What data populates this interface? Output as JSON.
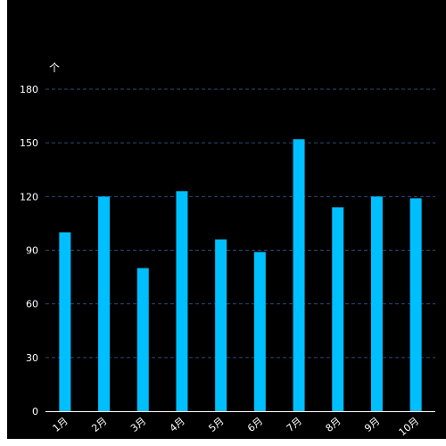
{
  "chart_data": {
    "type": "bar",
    "unit": "个",
    "categories": [
      "1月",
      "2月",
      "3月",
      "4月",
      "5月",
      "6月",
      "7月",
      "8月",
      "9月",
      "10月"
    ],
    "values": [
      100,
      120,
      80,
      123,
      96,
      89,
      152,
      114,
      120,
      119
    ],
    "y_ticks": [
      0,
      30,
      60,
      90,
      120,
      150,
      180
    ],
    "ylim": [
      0,
      180
    ],
    "grid": true,
    "colors": {
      "bar": "#00bfff",
      "background": "#000000",
      "gridline": "#2b4a78",
      "axis": "#ffffff",
      "text": "#ffffff"
    }
  }
}
